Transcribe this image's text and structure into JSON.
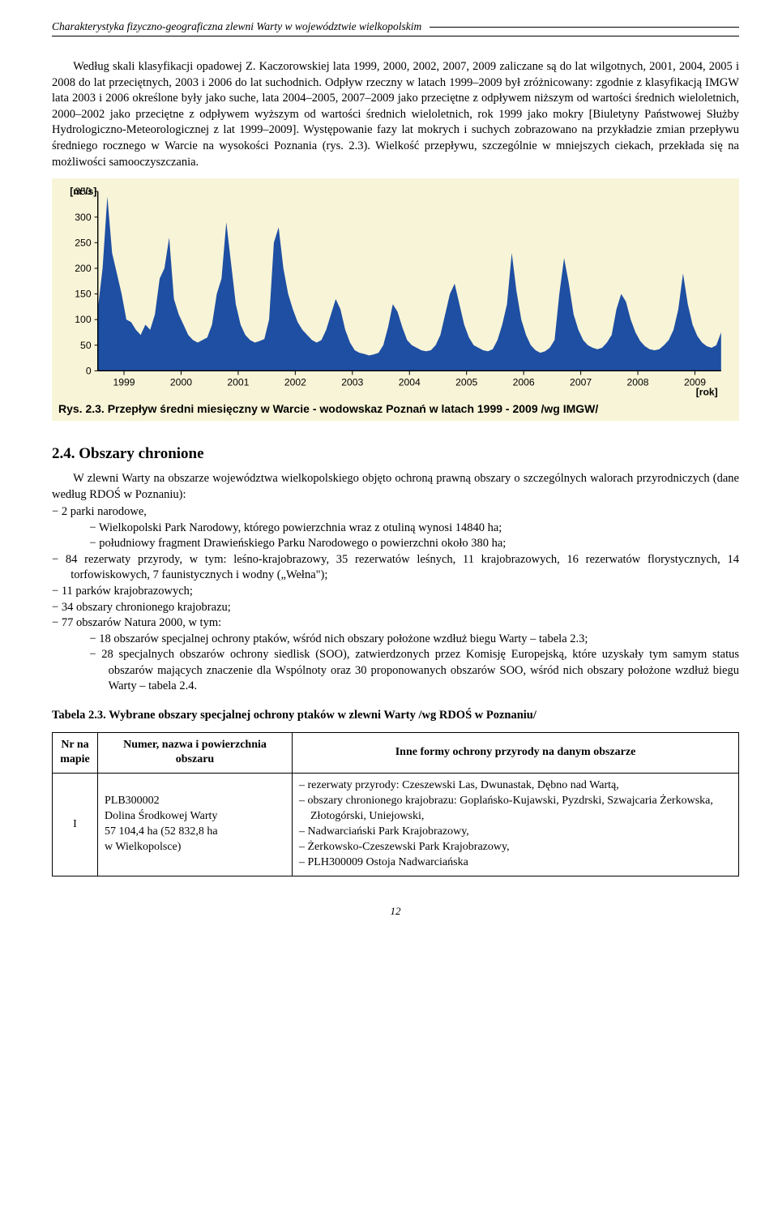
{
  "header": {
    "running_title": "Charakterystyka fizyczno-geograficzna zlewni Warty w województwie wielkopolskim"
  },
  "paragraphs": {
    "p1": "Według skali klasyfikacji opadowej Z. Kaczorowskiej lata 1999, 2000, 2002, 2007, 2009 zaliczane są do lat wilgotnych, 2001, 2004, 2005 i 2008 do lat przeciętnych, 2003 i 2006 do lat suchodnich. Odpływ rzeczny w latach 1999–2009 był zróżnicowany: zgodnie z klasyfikacją IMGW lata 2003 i 2006 określone były jako suche, lata 2004–2005, 2007–2009 jako przeciętne z odpływem niższym od wartości średnich wieloletnich, 2000–2002 jako przeciętne z odpływem wyższym od wartości średnich wieloletnich, rok 1999 jako mokry [Biuletyny Państwowej Służby Hydrologiczno-Meteorologicznej z lat 1999–2009]. Występowanie fazy lat mokrych i suchych zobrazowano na przykładzie zmian przepływu średniego rocznego w Warcie na wysokości Poznania (rys. 2.3). Wielkość przepływu, szczególnie w mniejszych ciekach, przekłada się na możliwości samooczyszczania."
  },
  "chart": {
    "type": "area",
    "ylabel": "[m³/s]",
    "xlabel": "[rok]",
    "caption": "Rys. 2.3. Przepływ średni miesięczny w Warcie - wodowskaz Poznań w latach 1999 - 2009 /wg IMGW/",
    "background_color": "#f8f4d7",
    "fill_color": "#1e4fa3",
    "axis_color": "#000000",
    "tick_fontsize": 12,
    "label_fontsize": 12,
    "caption_fontsize": 14,
    "ylim": [
      0,
      350
    ],
    "ytick_step": 50,
    "yticks": [
      0,
      50,
      100,
      150,
      200,
      250,
      300,
      350
    ],
    "xticks": [
      "1999",
      "2000",
      "2001",
      "2002",
      "2003",
      "2004",
      "2005",
      "2006",
      "2007",
      "2008",
      "2009"
    ],
    "values": [
      120,
      200,
      340,
      230,
      190,
      150,
      100,
      95,
      80,
      70,
      90,
      80,
      110,
      180,
      200,
      260,
      140,
      110,
      90,
      70,
      60,
      55,
      60,
      65,
      90,
      150,
      180,
      290,
      210,
      130,
      90,
      70,
      60,
      55,
      58,
      62,
      100,
      250,
      280,
      200,
      150,
      120,
      95,
      80,
      70,
      60,
      55,
      60,
      80,
      110,
      140,
      120,
      80,
      55,
      40,
      35,
      33,
      30,
      32,
      35,
      50,
      85,
      130,
      115,
      85,
      60,
      50,
      45,
      40,
      38,
      40,
      50,
      70,
      110,
      150,
      170,
      130,
      90,
      65,
      50,
      45,
      40,
      38,
      42,
      60,
      90,
      130,
      230,
      155,
      100,
      70,
      50,
      40,
      35,
      38,
      45,
      60,
      150,
      220,
      170,
      110,
      80,
      60,
      50,
      45,
      42,
      45,
      55,
      70,
      120,
      150,
      135,
      100,
      75,
      58,
      48,
      42,
      40,
      42,
      50,
      60,
      80,
      120,
      190,
      130,
      90,
      68,
      55,
      48,
      45,
      50,
      75
    ]
  },
  "section": {
    "heading": "2.4. Obszary chronione",
    "intro": "W zlewni Warty na obszarze województwa wielkopolskiego objęto ochroną prawną obszary o szczególnych walorach przyrodniczych (dane według RDOŚ w Poznaniu):",
    "items": [
      {
        "text": "2 parki narodowe,",
        "sub": [
          "Wielkopolski Park Narodowy, którego powierzchnia wraz z otuliną wynosi 14840 ha;",
          "południowy fragment Drawieńskiego Parku Narodowego o powierzchni około 380 ha;"
        ]
      },
      {
        "text": "84 rezerwaty przyrody, w tym: leśno-krajobrazowy, 35 rezerwatów leśnych, 11 krajobrazowych, 16 rezerwatów florystycznych, 14 torfowiskowych, 7 faunistycznych i wodny („Wełna\");"
      },
      {
        "text": "11 parków krajobrazowych;"
      },
      {
        "text": "34 obszary chronionego krajobrazu;"
      },
      {
        "text": "77 obszarów Natura 2000, w tym:",
        "sub": [
          "18 obszarów specjalnej ochrony ptaków, wśród nich obszary położone wzdłuż biegu Warty – tabela 2.3;",
          "28 specjalnych obszarów ochrony siedlisk (SOO), zatwierdzonych przez Komisję Europejską, które uzyskały tym samym status obszarów mających znaczenie dla Wspólnoty oraz 30 proponowanych obszarów SOO, wśród nich obszary położone wzdłuż biegu Warty – tabela 2.4."
        ]
      }
    ]
  },
  "table": {
    "title": "Tabela 2.3. Wybrane obszary specjalnej ochrony ptaków w zlewni Warty /wg RDOŚ w Poznaniu/",
    "columns": [
      "Nr na mapie",
      "Numer, nazwa i powierzchnia obszaru",
      "Inne formy ochrony przyrody na danym obszarze"
    ],
    "rows": [
      {
        "nr": "I",
        "name_lines": [
          "PLB300002",
          "Dolina Środkowej Warty",
          "57 104,4 ha (52 832,8 ha",
          "w Wielkopolsce)"
        ],
        "forms": [
          "rezerwaty przyrody: Czeszewski Las, Dwunastak, Dębno nad Wartą,",
          "obszary chronionego krajobrazu: Goplańsko-Kujawski, Pyzdrski, Szwajcaria Żerkowska, Złotogórski, Uniejowski,",
          "Nadwarciański Park Krajobrazowy,",
          "Żerkowsko-Czeszewski Park Krajobrazowy,",
          "PLH300009 Ostoja Nadwarciańska"
        ]
      }
    ]
  },
  "page_number": "12"
}
